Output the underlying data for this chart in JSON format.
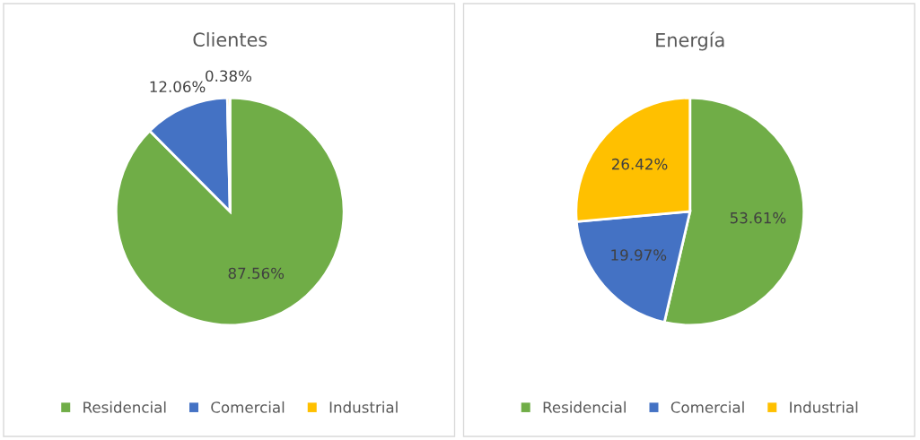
{
  "chart_data": [
    {
      "type": "pie",
      "title": "Clientes",
      "categories": [
        "Residencial",
        "Comercial",
        "Industrial"
      ],
      "values": [
        87.56,
        12.06,
        0.38
      ],
      "colors": [
        "#70ad47",
        "#4472c4",
        "#ffc000"
      ],
      "value_labels": [
        "87.56%",
        "12.06%",
        "0.38%"
      ],
      "legend": "bottom"
    },
    {
      "type": "pie",
      "title": "Energía",
      "categories": [
        "Residencial",
        "Comercial",
        "Industrial"
      ],
      "values": [
        53.61,
        19.97,
        26.42
      ],
      "colors": [
        "#70ad47",
        "#4472c4",
        "#ffc000"
      ],
      "value_labels": [
        "53.61%",
        "19.97%",
        "26.42%"
      ],
      "legend": "bottom"
    }
  ]
}
